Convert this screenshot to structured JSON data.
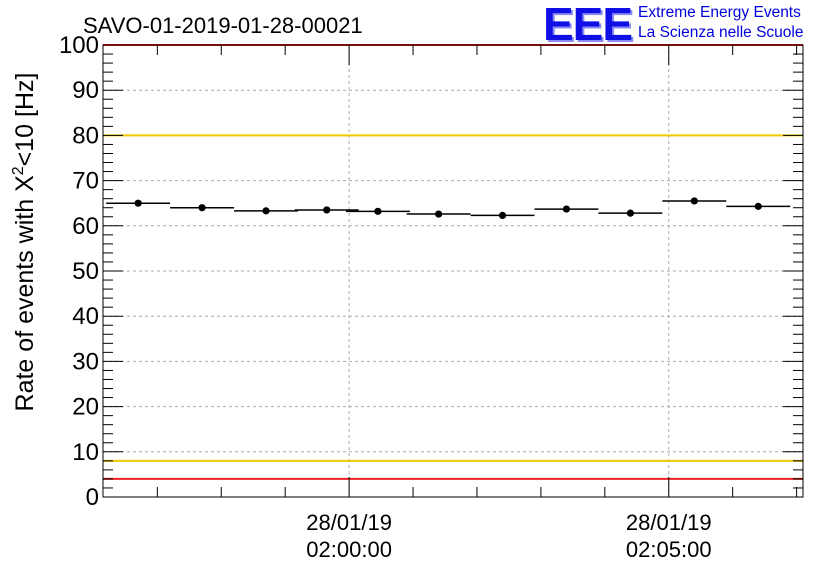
{
  "logo": {
    "letters": "EEE",
    "line1": "Extreme Energy Events",
    "line2": "La Scienza nelle Scuole"
  },
  "chart_data": {
    "type": "scatter",
    "title": "SAVO-01-2019-01-28-00021",
    "ylabel_pre": "Rate of events with X",
    "ylabel_sup": "2",
    "ylabel_post": "<10 [Hz]",
    "ylim": [
      0,
      100
    ],
    "yticks": [
      0,
      10,
      20,
      30,
      40,
      50,
      60,
      70,
      80,
      90,
      100
    ],
    "xlim_min": [
      -3.85,
      7.1
    ],
    "grid": true,
    "xtick_labels": [
      {
        "minute": 0,
        "date": "28/01/19",
        "time": "02:00:00"
      },
      {
        "minute": 5,
        "date": "28/01/19",
        "time": "02:05:00"
      }
    ],
    "bin_width_min": 1,
    "bin_centers_min": [
      -3.3,
      -2.3,
      -1.3,
      -0.35,
      0.45,
      1.4,
      2.4,
      3.4,
      4.4,
      5.4,
      6.4
    ],
    "values": [
      65.0,
      64.0,
      63.3,
      63.5,
      63.2,
      62.6,
      62.3,
      63.7,
      62.8,
      65.5,
      64.3
    ],
    "errors": [
      0.6,
      0.6,
      0.6,
      0.6,
      0.6,
      0.6,
      0.6,
      0.6,
      0.6,
      0.6,
      0.6
    ],
    "reference_lines": [
      {
        "y": 100,
        "color": "#ee2222"
      },
      {
        "y": 80,
        "color": "#f2c800"
      },
      {
        "y": 8,
        "color": "#f2c800"
      },
      {
        "y": 4,
        "color": "#ee2222"
      }
    ]
  }
}
